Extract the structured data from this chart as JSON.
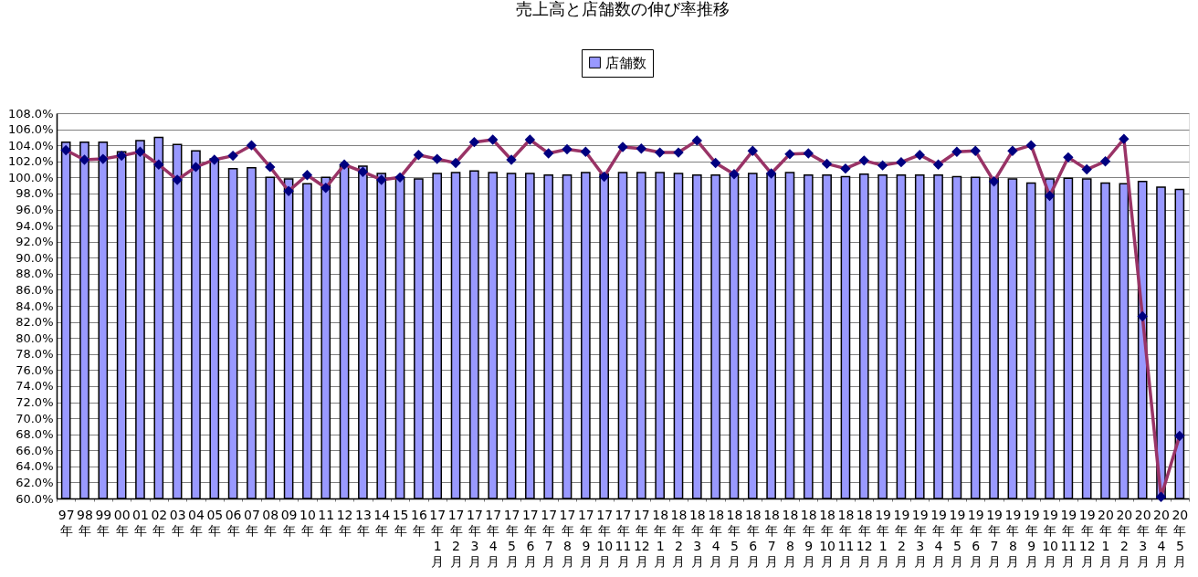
{
  "chart_data": {
    "type": "bar",
    "title": "売上高と店舗数の伸び率推移",
    "categories": [
      "97年",
      "98年",
      "99年",
      "00年",
      "01年",
      "02年",
      "03年",
      "04年",
      "05年",
      "06年",
      "07年",
      "08年",
      "09年",
      "10年",
      "11年",
      "12年",
      "13年",
      "14年",
      "15年",
      "16年",
      "17年1月",
      "17年2月",
      "17年3月",
      "17年4月",
      "17年5月",
      "17年6月",
      "17年7月",
      "17年8月",
      "17年9月",
      "17年10月",
      "17年11月",
      "17年12月",
      "18年1月",
      "18年2月",
      "18年3月",
      "18年4月",
      "18年5月",
      "18年6月",
      "18年7月",
      "18年8月",
      "18年9月",
      "18年10月",
      "18年11月",
      "18年12月",
      "19年1月",
      "19年2月",
      "19年3月",
      "19年4月",
      "19年5月",
      "19年6月",
      "19年7月",
      "19年8月",
      "19年9月",
      "19年10月",
      "19年11月",
      "19年12月",
      "20年1月",
      "20年2月",
      "20年3月",
      "20年4月",
      "20年5月"
    ],
    "series": [
      {
        "name": "店舗数",
        "color": "#9999ff",
        "values": [
          104.4,
          104.4,
          104.4,
          103.2,
          104.6,
          105.0,
          104.1,
          103.3,
          102.3,
          101.1,
          101.2,
          100.0,
          99.8,
          99.2,
          100.0,
          101.5,
          101.4,
          100.5,
          100.0,
          99.8,
          100.5,
          100.6,
          100.8,
          100.6,
          100.5,
          100.5,
          100.3,
          100.3,
          100.6,
          100.4,
          100.6,
          100.6,
          100.6,
          100.5,
          100.3,
          100.3,
          100.4,
          100.5,
          100.5,
          100.6,
          100.3,
          100.3,
          100.1,
          100.4,
          100.3,
          100.3,
          100.3,
          100.3,
          100.1,
          100.0,
          99.9,
          99.8,
          99.3,
          99.8,
          99.9,
          99.8,
          99.3,
          99.2,
          99.5,
          98.8,
          98.5
        ]
      },
      {
        "type": "line",
        "color": "#993366",
        "colors": [
          "#000080",
          "#000080",
          "#000080",
          "#000080",
          "#000080",
          "#000080",
          "#000080",
          "#000080",
          "#000080",
          "#000080",
          "#000080",
          "#000080",
          "#000080",
          "#000080",
          "#000080",
          "#000080",
          "#000080",
          "#000080",
          "#000080",
          "#000080",
          "#000080",
          "#000080",
          "#000080",
          "#000080",
          "#000080",
          "#000080",
          "#000080",
          "#000080",
          "#000080",
          "#000080",
          "#000080",
          "#000080",
          "#000080",
          "#000080",
          "#000080",
          "#000080",
          "#000080",
          "#000080",
          "#000080",
          "#000080",
          "#000080",
          "#000080",
          "#000080",
          "#000080",
          "#000080",
          "#000080",
          "#000080",
          "#000080",
          "#000080",
          "#000080",
          "#000080",
          "#000080",
          "#000080",
          "#000080",
          "#000080",
          "#000080",
          "#000080",
          "#000080",
          "#000080",
          "#000080",
          "#000080"
        ],
        "values": [
          103.4,
          102.2,
          102.3,
          102.7,
          103.2,
          101.6,
          99.7,
          101.3,
          102.2,
          102.7,
          104.0,
          101.3,
          98.3,
          100.3,
          98.7,
          101.6,
          100.7,
          99.7,
          100.0,
          102.8,
          102.3,
          101.8,
          104.4,
          104.7,
          102.2,
          104.7,
          103.0,
          103.5,
          103.2,
          100.1,
          103.8,
          103.6,
          103.1,
          103.1,
          104.6,
          101.8,
          100.4,
          103.3,
          100.5,
          102.9,
          103.0,
          101.7,
          101.1,
          102.1,
          101.5,
          101.9,
          102.8,
          101.6,
          103.2,
          103.3,
          99.5,
          103.3,
          104.0,
          97.7,
          102.5,
          101.0,
          102.0,
          104.8,
          82.7,
          60.2,
          67.8
        ]
      }
    ],
    "ylim": [
      60,
      108
    ],
    "yticks": [
      {
        "value": 60,
        "label": "60.0%"
      },
      {
        "value": 62,
        "label": "62.0%"
      },
      {
        "value": 64,
        "label": "64.0%"
      },
      {
        "value": 66,
        "label": "66.0%"
      },
      {
        "value": 68,
        "label": "68.0%"
      },
      {
        "value": 70,
        "label": "70.0%"
      },
      {
        "value": 72,
        "label": "72.0%"
      },
      {
        "value": 74,
        "label": "74.0%"
      },
      {
        "value": 76,
        "label": "76.0%"
      },
      {
        "value": 78,
        "label": "78.0%"
      },
      {
        "value": 80,
        "label": "80.0%"
      },
      {
        "value": 82,
        "label": "82.0%"
      },
      {
        "value": 84,
        "label": "84.0%"
      },
      {
        "value": 86,
        "label": "86.0%"
      },
      {
        "value": 88,
        "label": "88.0%"
      },
      {
        "value": 90,
        "label": "90.0%"
      },
      {
        "value": 92,
        "label": "92.0%"
      },
      {
        "value": 94,
        "label": "94.0%"
      },
      {
        "value": 96,
        "label": "96.0%"
      },
      {
        "value": 98,
        "label": "98.0%"
      },
      {
        "value": 100,
        "label": "100.0%"
      },
      {
        "value": 102,
        "label": "102.0%"
      },
      {
        "value": 104,
        "label": "104.0%"
      },
      {
        "value": 106,
        "label": "106.0%"
      },
      {
        "value": 108,
        "label": "108.0%"
      }
    ],
    "grid": "y",
    "legend": "top",
    "marker": "diamond",
    "line_style": "solid"
  }
}
